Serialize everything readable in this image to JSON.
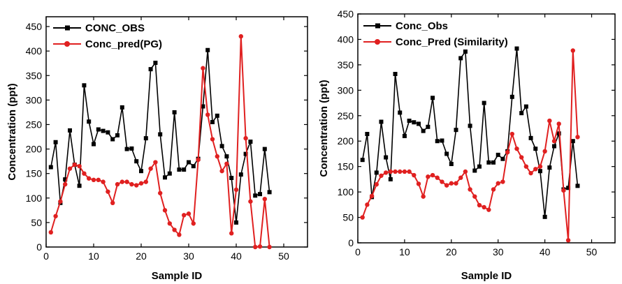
{
  "chart_data": [
    {
      "type": "line",
      "xlabel": "Sample ID",
      "ylabel": "Concentration (ppt)",
      "xlim": [
        0,
        55
      ],
      "ylim": [
        0,
        470
      ],
      "xticks": [
        0,
        10,
        20,
        30,
        40,
        50
      ],
      "yticks": [
        0,
        50,
        100,
        150,
        200,
        250,
        300,
        350,
        400,
        450
      ],
      "legend_position": "top-left",
      "x": [
        1,
        2,
        3,
        4,
        5,
        6,
        7,
        8,
        9,
        10,
        11,
        12,
        13,
        14,
        15,
        16,
        17,
        18,
        19,
        20,
        21,
        22,
        23,
        24,
        25,
        26,
        27,
        28,
        29,
        30,
        31,
        32,
        33,
        34,
        35,
        36,
        37,
        38,
        39,
        40,
        41,
        42,
        43,
        44,
        45,
        46,
        47
      ],
      "series": [
        {
          "name": "CONC_OBS",
          "color": "#000000",
          "marker": "square",
          "values": [
            163,
            214,
            90,
            138,
            238,
            168,
            125,
            330,
            256,
            210,
            240,
            237,
            234,
            220,
            228,
            285,
            200,
            201,
            175,
            155,
            222,
            363,
            376,
            230,
            142,
            150,
            275,
            158,
            158,
            173,
            165,
            180,
            287,
            402,
            255,
            268,
            206,
            185,
            141,
            50,
            148,
            190,
            215,
            105,
            108,
            200,
            112
          ]
        },
        {
          "name": "Conc_pred(PG)",
          "color": "#e02020",
          "marker": "circle",
          "values": [
            30,
            63,
            93,
            128,
            160,
            168,
            165,
            150,
            140,
            137,
            137,
            133,
            113,
            90,
            128,
            133,
            133,
            128,
            126,
            130,
            133,
            160,
            173,
            110,
            75,
            48,
            35,
            25,
            65,
            68,
            48,
            178,
            365,
            270,
            220,
            185,
            155,
            170,
            28,
            117,
            430,
            222,
            93,
            0,
            1,
            98,
            0
          ]
        }
      ]
    },
    {
      "type": "line",
      "xlabel": "Sample ID",
      "ylabel": "Concentration (ppt)",
      "xlim": [
        0,
        55
      ],
      "ylim": [
        0,
        450
      ],
      "xticks": [
        0,
        10,
        20,
        30,
        40,
        50
      ],
      "yticks": [
        0,
        50,
        100,
        150,
        200,
        250,
        300,
        350,
        400,
        450
      ],
      "legend_position": "top-left",
      "x": [
        1,
        2,
        3,
        4,
        5,
        6,
        7,
        8,
        9,
        10,
        11,
        12,
        13,
        14,
        15,
        16,
        17,
        18,
        19,
        20,
        21,
        22,
        23,
        24,
        25,
        26,
        27,
        28,
        29,
        30,
        31,
        32,
        33,
        34,
        35,
        36,
        37,
        38,
        39,
        40,
        41,
        42,
        43,
        44,
        45,
        46,
        47
      ],
      "series": [
        {
          "name": "Conc_Obs",
          "color": "#000000",
          "marker": "square",
          "values": [
            163,
            214,
            90,
            138,
            238,
            168,
            125,
            332,
            256,
            210,
            240,
            237,
            234,
            220,
            228,
            285,
            200,
            201,
            175,
            155,
            222,
            363,
            376,
            230,
            142,
            150,
            275,
            158,
            158,
            173,
            165,
            180,
            287,
            382,
            255,
            268,
            206,
            185,
            141,
            51,
            148,
            190,
            215,
            105,
            108,
            200,
            112
          ]
        },
        {
          "name": "Conc_Pred",
          "annotation": "(Similarity)",
          "color": "#e02020",
          "marker": "circle",
          "values": [
            50,
            75,
            92,
            115,
            132,
            138,
            140,
            140,
            140,
            140,
            140,
            133,
            116,
            91,
            130,
            133,
            128,
            120,
            113,
            117,
            117,
            128,
            140,
            105,
            91,
            74,
            70,
            65,
            105,
            117,
            120,
            178,
            214,
            185,
            168,
            150,
            137,
            145,
            150,
            180,
            240,
            200,
            234,
            103,
            5,
            378,
            208
          ]
        }
      ]
    }
  ]
}
